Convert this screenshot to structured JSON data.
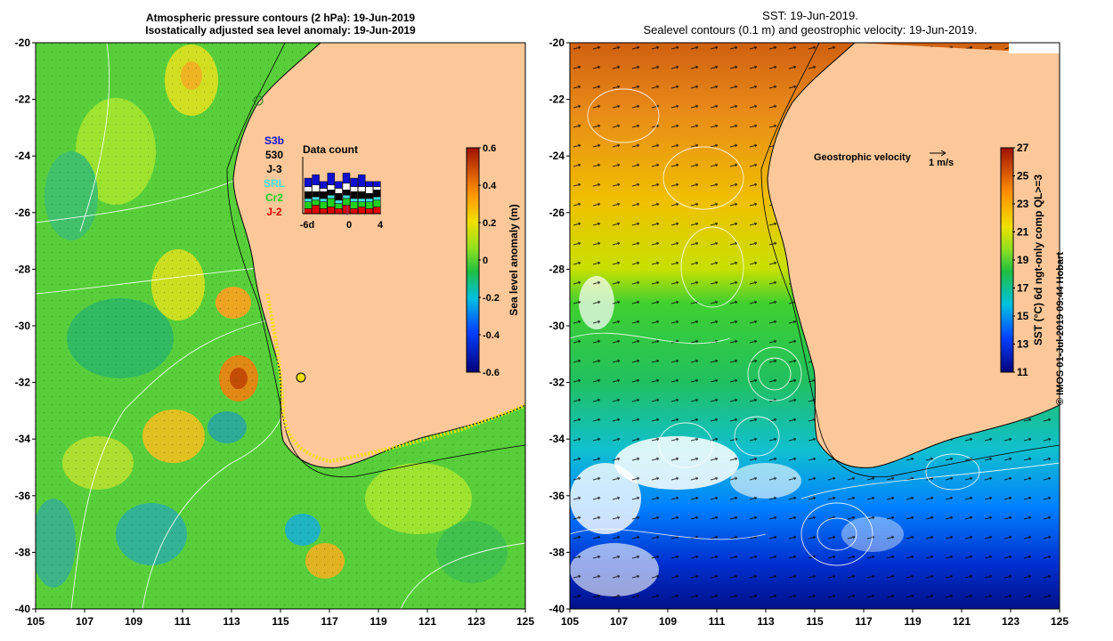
{
  "left_panel": {
    "title_line1": "Atmospheric pressure contours (2 hPa): 19-Jun-2019",
    "title_line2": "Isostatically adjusted sea level anomaly: 19-Jun-2019",
    "colorbar": {
      "label": "Sea level anomaly (m)",
      "ticks": [
        "0.6",
        "0.4",
        "0.2",
        "0",
        "-0.2",
        "-0.4",
        "-0.6"
      ],
      "range": [
        -0.6,
        0.6
      ]
    },
    "satellites": [
      {
        "name": "S3b",
        "color": "#1010d0"
      },
      {
        "name": "530",
        "color": "#000000"
      },
      {
        "name": "J-3",
        "color": "#000000"
      },
      {
        "name": "SRL",
        "color": "#40e0e0"
      },
      {
        "name": "Cr2",
        "color": "#20d020"
      },
      {
        "name": "J-2",
        "color": "#e00000"
      }
    ],
    "data_count": {
      "title": "Data count",
      "x_ticks": [
        "-6d",
        "0",
        "4"
      ]
    }
  },
  "right_panel": {
    "title_line1": "SST: 19-Jun-2019.",
    "title_line2": "Sealevel contours (0.1 m) and geostrophic velocity: 19-Jun-2019.",
    "colorbar": {
      "label": "SST (°C) 6d ngt-only comp QL>=3",
      "ticks": [
        "27",
        "25",
        "23",
        "21",
        "19",
        "17",
        "15",
        "13",
        "11"
      ],
      "range": [
        11,
        27
      ]
    },
    "velocity_legend": {
      "label": "Geostrophic velocity",
      "scale": "1 m/s"
    }
  },
  "axes": {
    "lat_ticks": [
      "-20",
      "-22",
      "-24",
      "-26",
      "-28",
      "-30",
      "-32",
      "-34",
      "-36",
      "-38",
      "-40"
    ],
    "lon_ticks": [
      "105",
      "107",
      "109",
      "111",
      "113",
      "115",
      "117",
      "119",
      "121",
      "123",
      "125"
    ]
  },
  "credit": "© IMOS 01-Jul-2019 09:44 Hobart",
  "colors": {
    "land": "#fcc89a",
    "coast_line": "#000000"
  }
}
